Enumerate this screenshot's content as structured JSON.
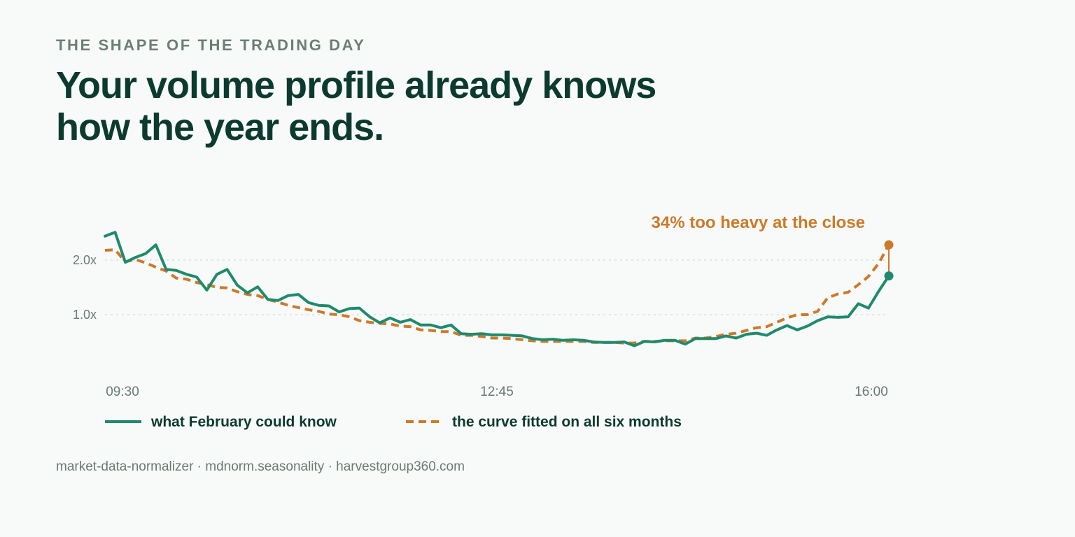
{
  "header": {
    "eyebrow": "THE SHAPE OF THE TRADING DAY",
    "headline": "Your volume profile already knows how the year ends."
  },
  "footer": {
    "text": "market-data-normalizer · mdnorm.seasonality · harvestgroup360.com"
  },
  "colors": {
    "february": "#1f8a6c",
    "fitted": "#cc7a2a",
    "headline": "#0c3a2e",
    "muted": "#6b7f74",
    "background": "#f8faf9"
  },
  "chart_data": {
    "type": "line",
    "x_ticks": [
      "09:30",
      "12:45",
      "16:00"
    ],
    "y_ticks": [
      {
        "value": 1.0,
        "label": "1.0x"
      },
      {
        "value": 2.0,
        "label": "2.0x"
      }
    ],
    "ylim": [
      0,
      2.6
    ],
    "grid": "dotted horizontal at 1.0x and 2.0x",
    "legend_position": "bottom-left",
    "annotation": "34% too heavy at the close",
    "series": [
      {
        "name": "what February could know",
        "style": "solid",
        "color": "#1f8a6c",
        "values": [
          2.44,
          2.51,
          1.96,
          2.05,
          2.12,
          2.28,
          1.83,
          1.81,
          1.74,
          1.69,
          1.45,
          1.74,
          1.83,
          1.54,
          1.4,
          1.51,
          1.28,
          1.26,
          1.35,
          1.37,
          1.22,
          1.17,
          1.16,
          1.05,
          1.11,
          1.12,
          0.96,
          0.85,
          0.94,
          0.86,
          0.91,
          0.81,
          0.81,
          0.76,
          0.81,
          0.65,
          0.64,
          0.65,
          0.63,
          0.63,
          0.62,
          0.61,
          0.56,
          0.54,
          0.55,
          0.53,
          0.54,
          0.53,
          0.5,
          0.49,
          0.49,
          0.5,
          0.43,
          0.51,
          0.5,
          0.53,
          0.53,
          0.46,
          0.56,
          0.56,
          0.56,
          0.61,
          0.57,
          0.64,
          0.66,
          0.62,
          0.72,
          0.8,
          0.72,
          0.79,
          0.89,
          0.96,
          0.95,
          0.96,
          1.2,
          1.12,
          1.43,
          1.71
        ]
      },
      {
        "name": "the curve fitted on all six months",
        "style": "dashed",
        "color": "#cc7a2a",
        "values": [
          2.18,
          2.19,
          1.97,
          2.01,
          1.95,
          1.87,
          1.8,
          1.67,
          1.65,
          1.59,
          1.55,
          1.5,
          1.49,
          1.42,
          1.37,
          1.35,
          1.28,
          1.23,
          1.17,
          1.13,
          1.09,
          1.06,
          1.01,
          1.0,
          0.96,
          0.89,
          0.86,
          0.84,
          0.83,
          0.79,
          0.78,
          0.72,
          0.71,
          0.69,
          0.69,
          0.62,
          0.62,
          0.6,
          0.57,
          0.57,
          0.56,
          0.54,
          0.52,
          0.51,
          0.51,
          0.51,
          0.51,
          0.51,
          0.49,
          0.49,
          0.49,
          0.48,
          0.48,
          0.51,
          0.51,
          0.52,
          0.52,
          0.52,
          0.57,
          0.57,
          0.6,
          0.64,
          0.66,
          0.71,
          0.76,
          0.78,
          0.86,
          0.94,
          1.0,
          1.0,
          1.06,
          1.31,
          1.38,
          1.41,
          1.55,
          1.7,
          1.94,
          2.28
        ]
      }
    ]
  }
}
